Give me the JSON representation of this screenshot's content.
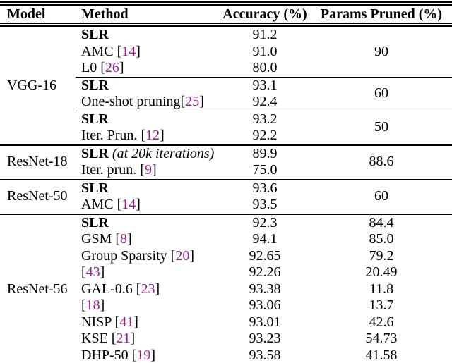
{
  "page": {
    "background": "#ffffff",
    "text_color": "#000000",
    "citation_color": "#982090"
  },
  "table": {
    "headers": {
      "model": "Model",
      "method": "Method",
      "accuracy": "Accuracy (%)",
      "params": "Params Pruned (%)"
    },
    "groups": [
      {
        "model": "VGG-16",
        "rows": [
          {
            "bold": "SLR",
            "acc": "91.2",
            "params": "90"
          },
          {
            "text": "AMC ",
            "open": "[",
            "cite": "14",
            "close": "]",
            "acc": "91.0"
          },
          {
            "text": "L0 ",
            "open": "[",
            "cite": "26",
            "close": "]",
            "acc": "80.0"
          },
          {
            "bold": "SLR",
            "acc": "93.1",
            "params": "60"
          },
          {
            "text": "One-shot pruning",
            "open": "[",
            "cite": "25",
            "close": "]",
            "acc": "92.4"
          },
          {
            "bold": "SLR",
            "acc": "93.2",
            "params": "50"
          },
          {
            "text": "Iter. Prun. ",
            "open": "[",
            "cite": "12",
            "close": "]",
            "acc": "92.2"
          }
        ]
      },
      {
        "model": "ResNet-18",
        "rows": [
          {
            "bold": "SLR",
            "note": " (at 20k iterations)",
            "acc": "89.9",
            "params": "88.6"
          },
          {
            "text": "Iter. prun. ",
            "open": "[",
            "cite": "9",
            "close": "]",
            "acc": "75.0"
          }
        ]
      },
      {
        "model": "ResNet-50",
        "rows": [
          {
            "bold": "SLR",
            "acc": "93.6",
            "params": "60"
          },
          {
            "text": "AMC ",
            "open": "[",
            "cite": "14",
            "close": "]",
            "acc": "93.5"
          }
        ]
      },
      {
        "model": "ResNet-56",
        "rows": [
          {
            "bold": "SLR",
            "acc": "92.3",
            "params": "84.4"
          },
          {
            "text": "GSM ",
            "open": "[",
            "cite": "8",
            "close": "]",
            "acc": "94.1",
            "params": "85.0"
          },
          {
            "text": "Group Sparsity ",
            "open": "[",
            "cite": "20",
            "close": "]",
            "acc": "92.65",
            "params": "79.2"
          },
          {
            "open": "[",
            "cite": "43",
            "close": "]",
            "acc": "92.26",
            "params": "20.49"
          },
          {
            "text": "GAL-0.6 ",
            "open": "[",
            "cite": "23",
            "close": "]",
            "acc": "93.38",
            "params": "11.8"
          },
          {
            "open": "[",
            "cite": "18",
            "close": "]",
            "acc": "93.06",
            "params": "13.7"
          },
          {
            "text": "NISP ",
            "open": "[",
            "cite": "41",
            "close": "]",
            "acc": "93.01",
            "params": "42.6"
          },
          {
            "text": "KSE ",
            "open": "[",
            "cite": "21",
            "close": "]",
            "acc": "93.23",
            "params": "54.73"
          },
          {
            "text": "DHP-50 ",
            "open": "[",
            "cite": "19",
            "close": "]",
            "acc": "93.58",
            "params": "41.58"
          }
        ]
      }
    ]
  }
}
